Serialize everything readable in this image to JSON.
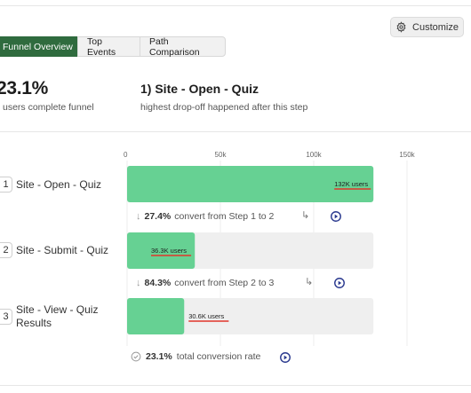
{
  "toolbar": {
    "customize_label": "Customize",
    "customize_icon": "gear-icon"
  },
  "tabs": [
    {
      "label": "Funnel Overview",
      "active": true
    },
    {
      "label": "Top Events",
      "active": false
    },
    {
      "label": "Path Comparison",
      "active": false
    }
  ],
  "summary": {
    "completion_rate": "23.1%",
    "completion_caption": "users complete funnel",
    "drop_step": "1) Site - Open - Quiz",
    "drop_caption": "highest drop-off happened after this step"
  },
  "colors": {
    "bar": "#66d193",
    "track": "#efefef",
    "accent": "#2f6b3e",
    "underline": "#e0352b",
    "play": "#2b3a8f"
  },
  "chart_data": {
    "type": "bar",
    "orientation": "horizontal",
    "ticks": [
      "0",
      "50k",
      "100k",
      "150k"
    ],
    "tick_values": [
      0,
      50000,
      100000,
      150000
    ],
    "xlim": [
      0,
      150000
    ],
    "track_max": 132000,
    "categories": [
      "Site - Open - Quiz",
      "Site - Submit - Quiz",
      "Site - View - Quiz Results"
    ],
    "values": [
      132000,
      36300,
      30600
    ],
    "value_labels": [
      "132K users",
      "36.3K users",
      "30.6K users"
    ]
  },
  "steps": [
    {
      "num": "1",
      "label": "Site - Open - Quiz"
    },
    {
      "num": "2",
      "label": "Site - Submit - Quiz"
    },
    {
      "num": "3",
      "label": "Site - View - Quiz Results"
    }
  ],
  "conversions": [
    {
      "pct": "27.4%",
      "text": "convert from Step 1 to 2"
    },
    {
      "pct": "84.3%",
      "text": "convert from Step 2 to 3"
    }
  ],
  "total": {
    "pct": "23.1%",
    "text": "total conversion rate"
  }
}
